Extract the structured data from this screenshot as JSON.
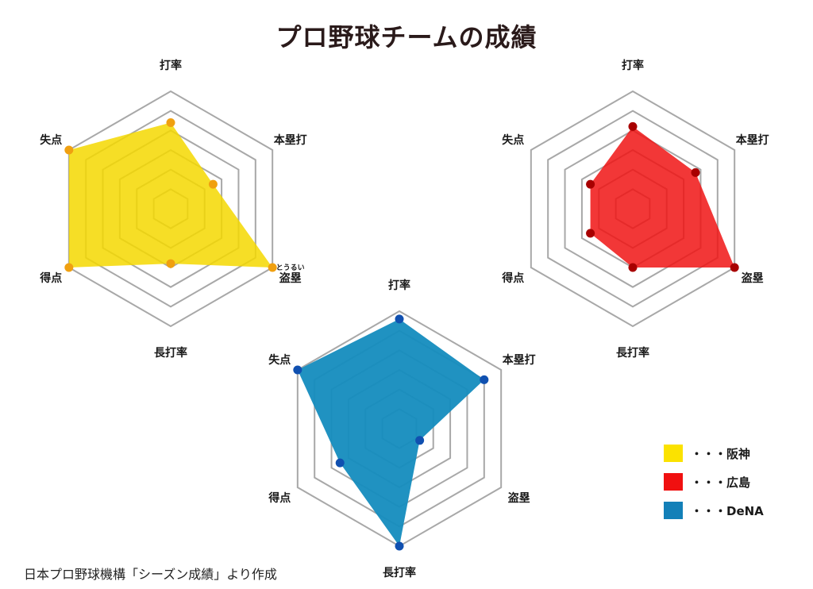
{
  "title": "プロ野球チームの成績",
  "source": "日本プロ野球機構「シーズン成績」より作成",
  "chart_data": {
    "type": "radar",
    "axes": [
      "打率",
      "本塁打",
      "盗塁",
      "長打率",
      "得点",
      "失点"
    ],
    "ruby": {
      "盗塁": "とうるい"
    },
    "range": [
      0,
      6
    ],
    "rings": 6,
    "series": [
      {
        "name": "阪神",
        "color": "#f5d800",
        "fill": "rgba(245,216,0,0.85)",
        "marker": "#f0a010",
        "values": [
          4.4,
          2.5,
          6.0,
          2.8,
          6.0,
          6.0
        ]
      },
      {
        "name": "広島",
        "color": "#e81818",
        "fill": "rgba(240,20,20,0.85)",
        "marker": "#a80000",
        "values": [
          4.2,
          3.7,
          6.0,
          3.0,
          2.5,
          2.5
        ]
      },
      {
        "name": "DeNA",
        "color": "#1f8fbf",
        "fill": "rgba(20,140,190,0.95)",
        "marker": "#1050b0",
        "values": [
          5.6,
          5.0,
          1.2,
          6.0,
          3.5,
          6.0
        ]
      }
    ]
  },
  "legend": [
    {
      "label": "・・・阪神",
      "color": "#fbe200"
    },
    {
      "label": "・・・広島",
      "color": "#f01010"
    },
    {
      "label": "・・・DeNA",
      "color": "#1380b8"
    }
  ]
}
